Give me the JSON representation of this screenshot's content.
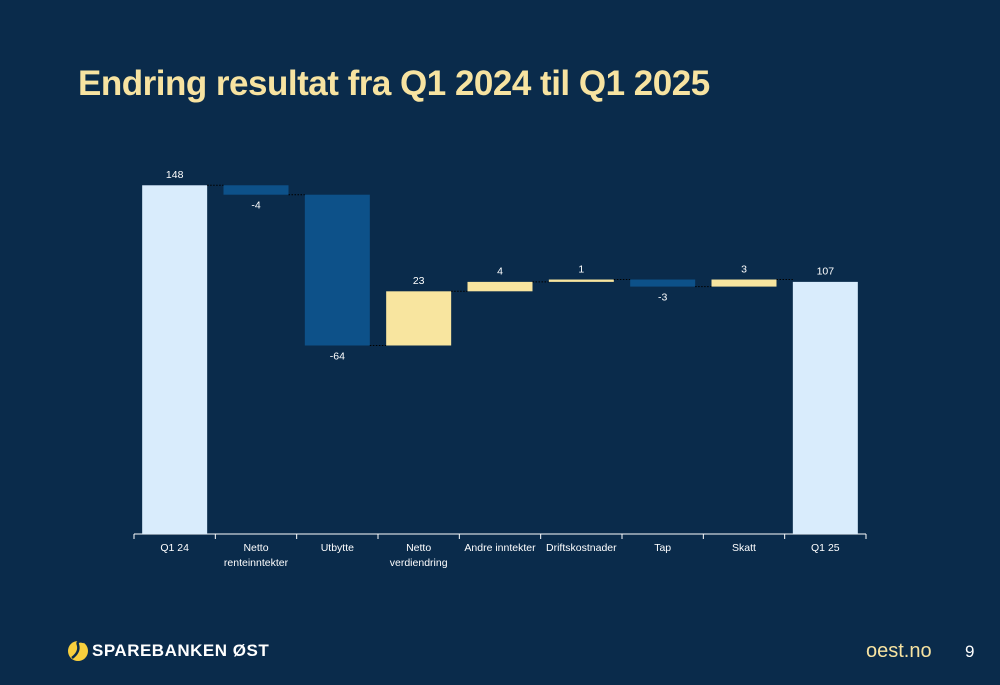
{
  "chart_data": {
    "type": "waterfall",
    "title": "Endring resultat fra Q1 2024 til Q1 2025",
    "categories": [
      "Q1 24",
      "Netto renteinntekter",
      "Utbytte",
      "Netto verdiendring",
      "Andre inntekter",
      "Driftskostnader",
      "Tap",
      "Skatt",
      "Q1 25"
    ],
    "values": [
      148,
      -4,
      -64,
      23,
      4,
      1,
      -3,
      3,
      107
    ],
    "total_color": "#d9ecfc",
    "increase_color": "#f8e59f",
    "decrease_color": "#0d5189",
    "ylim": [
      0,
      160
    ]
  },
  "footer": {
    "brand": "SPAREBANKEN ØST",
    "url": "oest.no",
    "page": "9"
  }
}
